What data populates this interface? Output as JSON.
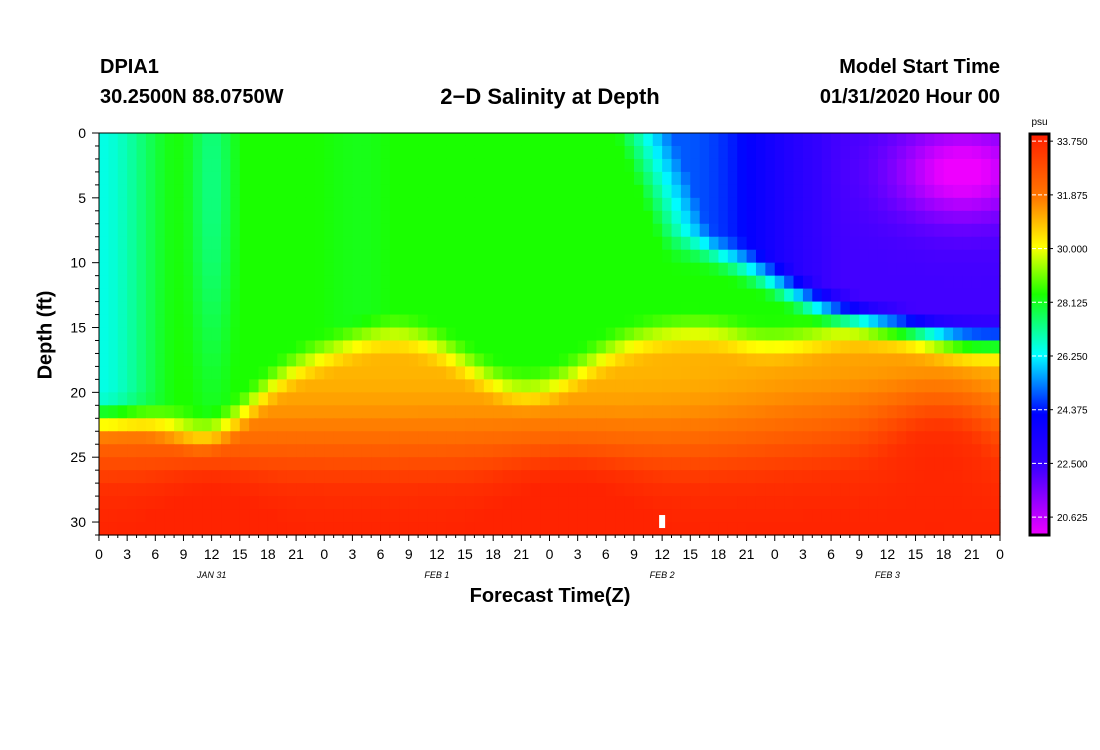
{
  "header": {
    "station": "DPIA1",
    "location": "30.2500N 88.0750W",
    "title": "2−D Salinity at Depth",
    "model_start_label": "Model Start Time",
    "model_start_value": "01/31/2020 Hour 00"
  },
  "chart_data": {
    "type": "heatmap",
    "title": "2−D Salinity at Depth",
    "xlabel": "Forecast Time(Z)",
    "ylabel": "Depth (ft)",
    "x_hours_range": [
      0,
      96
    ],
    "y_range": [
      0,
      31
    ],
    "x_tick_labels": [
      "0",
      "3",
      "6",
      "9",
      "12",
      "15",
      "18",
      "21",
      "0",
      "3",
      "6",
      "9",
      "12",
      "15",
      "18",
      "21",
      "0",
      "3",
      "6",
      "9",
      "12",
      "15",
      "18",
      "21",
      "0",
      "3",
      "6",
      "9",
      "12",
      "15",
      "18",
      "21",
      "0"
    ],
    "y_tick_labels": [
      "0",
      "5",
      "10",
      "15",
      "20",
      "25",
      "30"
    ],
    "y_ticks": [
      0,
      5,
      10,
      15,
      20,
      25,
      30
    ],
    "date_labels": [
      {
        "label": "JAN 31",
        "hour": 12
      },
      {
        "label": "FEB 1",
        "hour": 36
      },
      {
        "label": "FEB 2",
        "hour": 60
      },
      {
        "label": "FEB 3",
        "hour": 84
      }
    ],
    "colorbar": {
      "unit": "psu",
      "range": [
        20.0,
        34.0
      ],
      "tick_labels": [
        "33.750",
        "31.875",
        "30.000",
        "28.125",
        "26.250",
        "24.375",
        "22.500",
        "20.625"
      ],
      "ticks": [
        33.75,
        31.875,
        30.0,
        28.125,
        26.25,
        24.375,
        22.5,
        20.625
      ]
    },
    "colors": {
      "magenta": "#ff00ff",
      "blue": "#0000ff",
      "cyan": "#00ffff",
      "green": "#00ff00",
      "yellow": "#ffff00",
      "orange": "#ff8c00",
      "red": "#ff2000"
    },
    "marker": {
      "hour": 60,
      "depth": 30
    }
  }
}
